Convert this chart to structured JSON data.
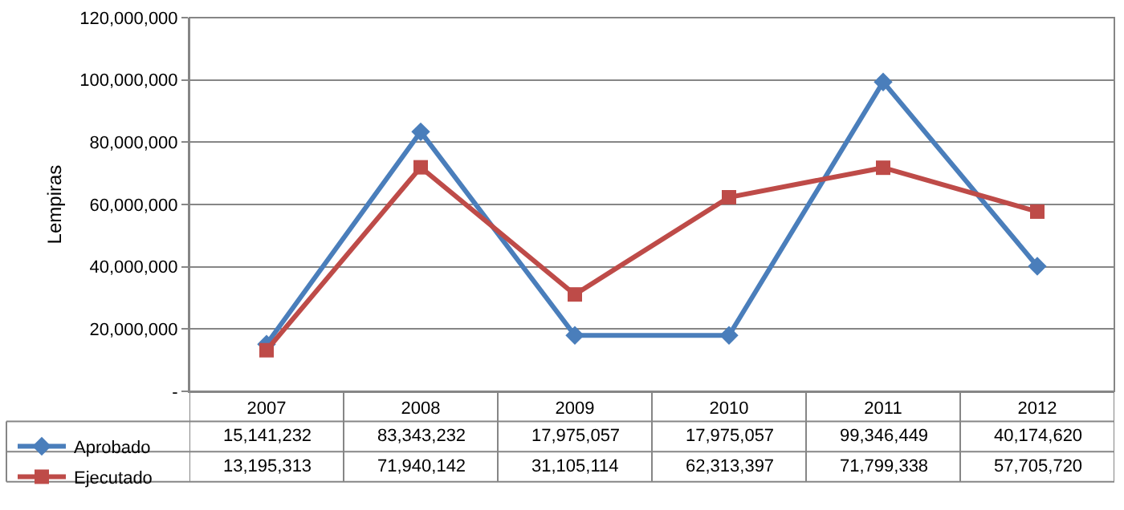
{
  "chart_data": {
    "type": "line",
    "ylabel": "Lempiras",
    "categories": [
      "2007",
      "2008",
      "2009",
      "2010",
      "2011",
      "2012"
    ],
    "series": [
      {
        "name": "Aprobado",
        "color": "#4a7ebb",
        "marker": "diamond",
        "values": [
          15141232,
          83343232,
          17975057,
          17975057,
          99346449,
          40174620
        ],
        "value_labels": [
          "15,141,232",
          "83,343,232",
          "17,975,057",
          "17,975,057",
          "99,346,449",
          "40,174,620"
        ]
      },
      {
        "name": "Ejecutado",
        "color": "#be4b48",
        "marker": "square",
        "values": [
          13195313,
          71940142,
          31105114,
          62313397,
          71799338,
          57705720
        ],
        "value_labels": [
          "13,195,313",
          "71,940,142",
          "31,105,114",
          "62,313,397",
          "71,799,338",
          "57,705,720"
        ]
      }
    ],
    "ylim": [
      0,
      120000000
    ],
    "yticks": [
      {
        "value": 0,
        "label": "-"
      },
      {
        "value": 20000000,
        "label": "20,000,000"
      },
      {
        "value": 40000000,
        "label": "40,000,000"
      },
      {
        "value": 60000000,
        "label": "60,000,000"
      },
      {
        "value": 80000000,
        "label": "80,000,000"
      },
      {
        "value": 100000000,
        "label": "100,000,000"
      },
      {
        "value": 120000000,
        "label": "120,000,000"
      }
    ],
    "grid": "y",
    "legend": "bottom left",
    "line_style": "solid"
  }
}
